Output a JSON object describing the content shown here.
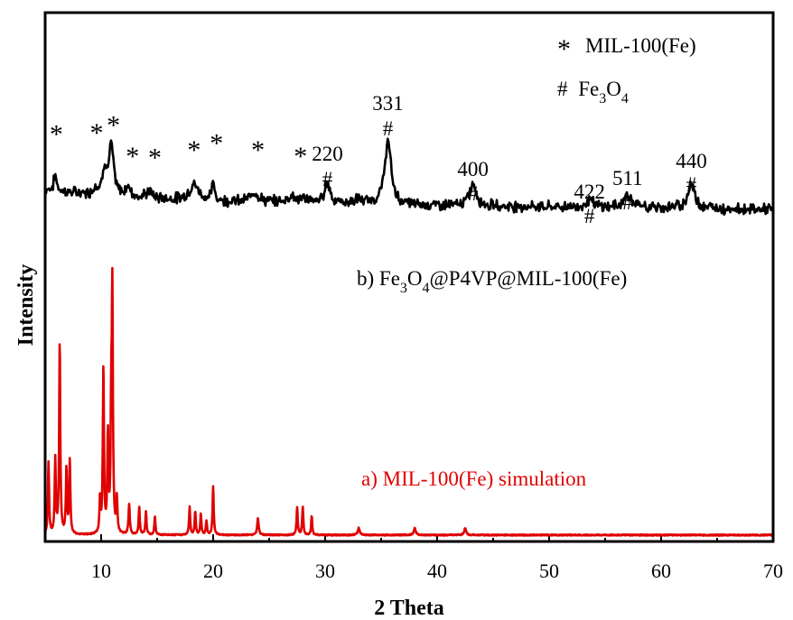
{
  "chart_data": {
    "type": "line",
    "xlabel": "2 Theta",
    "ylabel": "Intensity",
    "xlim": [
      5,
      70
    ],
    "xticks": [
      10,
      20,
      30,
      40,
      50,
      60,
      70
    ],
    "grid": false,
    "y_tick_labels": false,
    "series": [
      {
        "name": "b) Fe3O4@P4VP@MIL-100(Fe)",
        "color": "#000000",
        "baseline": 0.46,
        "peaks": [
          [
            5.9,
            0.12,
            0.15
          ],
          [
            9.5,
            0.06,
            0.2
          ],
          [
            10.3,
            0.2,
            0.2
          ],
          [
            10.9,
            0.38,
            0.25
          ],
          [
            12.4,
            0.07,
            0.3
          ],
          [
            14.3,
            0.05,
            0.3
          ],
          [
            18.3,
            0.12,
            0.5
          ],
          [
            20.0,
            0.13,
            0.15
          ],
          [
            23.7,
            0.08,
            0.4
          ],
          [
            27.0,
            0.05,
            0.5
          ],
          [
            28.3,
            0.03,
            0.4
          ],
          [
            30.2,
            0.16,
            0.3
          ],
          [
            33.0,
            0.03,
            0.5
          ],
          [
            35.6,
            0.48,
            0.35
          ],
          [
            43.2,
            0.17,
            0.35
          ],
          [
            53.6,
            0.06,
            0.35
          ],
          [
            57.0,
            0.1,
            0.4
          ],
          [
            62.7,
            0.18,
            0.4
          ]
        ]
      },
      {
        "name": "a) MIL-100(Fe) simulation",
        "color": "#e00000",
        "baseline": 0.02,
        "peaks": [
          [
            5.3,
            0.31,
            0.06
          ],
          [
            5.9,
            0.32,
            0.06
          ],
          [
            6.3,
            0.83,
            0.06
          ],
          [
            6.9,
            0.28,
            0.06
          ],
          [
            7.2,
            0.32,
            0.06
          ],
          [
            9.9,
            0.15,
            0.06
          ],
          [
            10.2,
            0.72,
            0.06
          ],
          [
            10.6,
            0.42,
            0.06
          ],
          [
            10.9,
            0.48,
            0.06
          ],
          [
            11.0,
            1.0,
            0.06
          ],
          [
            11.4,
            0.15,
            0.06
          ],
          [
            12.5,
            0.13,
            0.07
          ],
          [
            13.4,
            0.12,
            0.06
          ],
          [
            14.0,
            0.1,
            0.06
          ],
          [
            14.8,
            0.08,
            0.06
          ],
          [
            17.9,
            0.12,
            0.06
          ],
          [
            18.4,
            0.1,
            0.06
          ],
          [
            18.9,
            0.09,
            0.06
          ],
          [
            19.4,
            0.06,
            0.06
          ],
          [
            20.0,
            0.21,
            0.06
          ],
          [
            24.0,
            0.07,
            0.08
          ],
          [
            27.5,
            0.12,
            0.06
          ],
          [
            28.0,
            0.12,
            0.06
          ],
          [
            28.8,
            0.08,
            0.06
          ],
          [
            33.0,
            0.03,
            0.1
          ],
          [
            38.0,
            0.03,
            0.1
          ],
          [
            42.5,
            0.03,
            0.1
          ]
        ]
      }
    ],
    "annotations": {
      "legend_lines": [
        {
          "symbol": "*",
          "text": "MIL-100(Fe)"
        },
        {
          "symbol": "#",
          "text_main": "Fe",
          "sub1": "3",
          "mid": "O",
          "sub2": "4"
        }
      ],
      "label_b": {
        "pre": "b) Fe",
        "sub1": "3",
        "mid": "O",
        "sub2": "4",
        "post": "@P4VP@MIL-100(Fe)"
      },
      "label_a": "a) MIL-100(Fe) simulation",
      "stars": [
        {
          "symbol": "*",
          "x": 6.0,
          "level": 0.7
        },
        {
          "symbol": "*",
          "x": 9.6,
          "level": 0.71
        },
        {
          "symbol": "*",
          "x": 11.1,
          "level": 0.77
        },
        {
          "symbol": "*",
          "x": 12.8,
          "level": 0.53
        },
        {
          "symbol": "*",
          "x": 14.8,
          "level": 0.52
        },
        {
          "symbol": "*",
          "x": 18.3,
          "level": 0.58
        },
        {
          "symbol": "*",
          "x": 20.3,
          "level": 0.63
        },
        {
          "symbol": "*",
          "x": 24.0,
          "level": 0.58
        },
        {
          "symbol": "*",
          "x": 27.8,
          "level": 0.53
        }
      ],
      "reflections": [
        {
          "hkl": "220",
          "symbol": "#",
          "x": 30.2
        },
        {
          "hkl": "331",
          "symbol": "#",
          "x": 35.6
        },
        {
          "hkl": "400",
          "symbol": "#",
          "x": 43.2
        },
        {
          "hkl": "422",
          "symbol": "#",
          "x": 53.6
        },
        {
          "hkl": "511",
          "symbol": "#",
          "x": 57.0
        },
        {
          "hkl": "440",
          "symbol": "#",
          "x": 62.7
        }
      ]
    }
  }
}
